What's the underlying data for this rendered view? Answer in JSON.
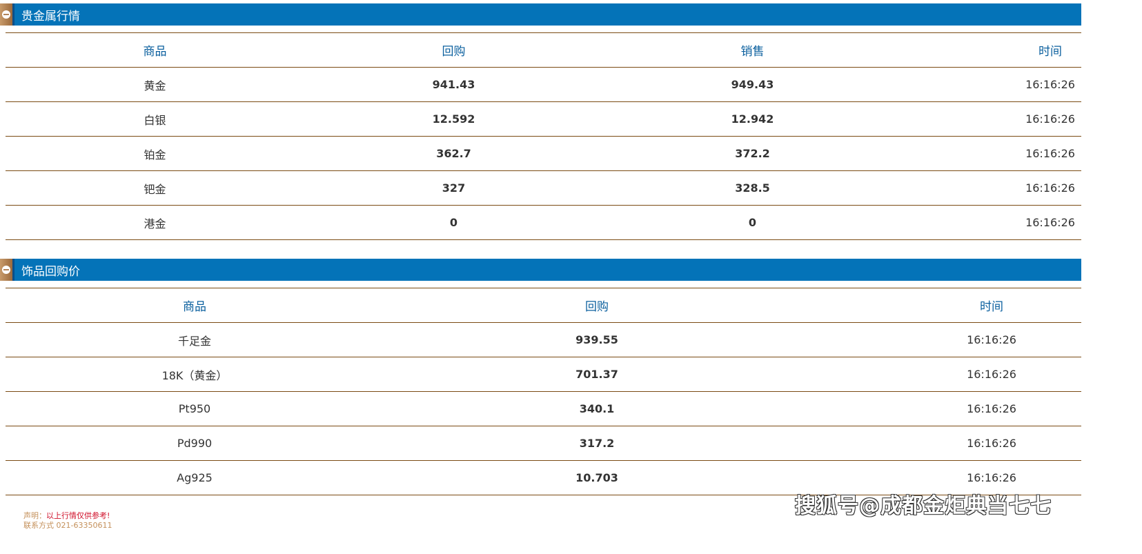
{
  "sections": [
    {
      "title": "贵金属行情",
      "headers": [
        "商品",
        "回购",
        "销售",
        "时间"
      ],
      "rows": [
        [
          "黄金",
          "941.43",
          "949.43",
          "16:16:26"
        ],
        [
          "白银",
          "12.592",
          "12.942",
          "16:16:26"
        ],
        [
          "铂金",
          "362.7",
          "372.2",
          "16:16:26"
        ],
        [
          "钯金",
          "327",
          "328.5",
          "16:16:26"
        ],
        [
          "港金",
          "0",
          "0",
          "16:16:26"
        ]
      ]
    },
    {
      "title": "饰品回购价",
      "headers": [
        "商品",
        "回购",
        "时间"
      ],
      "rows": [
        [
          "千足金",
          "939.55",
          "16:16:26"
        ],
        [
          "18K（黄金）",
          "701.37",
          "16:16:26"
        ],
        [
          "Pt950",
          "340.1",
          "16:16:26"
        ],
        [
          "Pd990",
          "317.2",
          "16:16:26"
        ],
        [
          "Ag925",
          "10.703",
          "16:16:26"
        ]
      ]
    }
  ],
  "footer": {
    "label": "声明：",
    "notice": "以上行情仅供参考!",
    "contact": "联系方式 021-63350611"
  },
  "watermark": "搜狐号@成都金炬典当七七",
  "colors": {
    "header": "#0473b8",
    "border": "#7a4a12",
    "notice": "#d0102a"
  }
}
